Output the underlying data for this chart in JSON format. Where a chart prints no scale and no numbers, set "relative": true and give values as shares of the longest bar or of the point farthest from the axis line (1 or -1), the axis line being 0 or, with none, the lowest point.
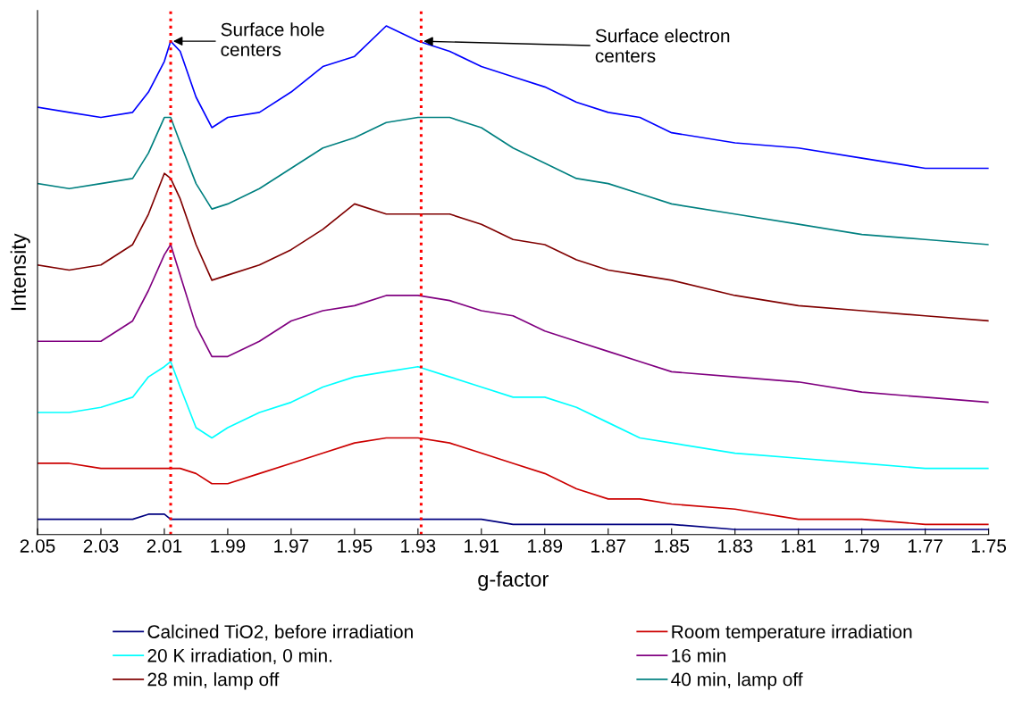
{
  "chart_data": {
    "type": "line",
    "relative": true,
    "xlabel": "g-factor",
    "ylabel": "Intensity",
    "x": [
      2.05,
      2.04,
      2.03,
      2.02,
      2.015,
      2.01,
      2.008,
      2.005,
      2.0,
      1.995,
      1.99,
      1.98,
      1.97,
      1.96,
      1.95,
      1.94,
      1.93,
      1.92,
      1.91,
      1.9,
      1.89,
      1.88,
      1.87,
      1.86,
      1.85,
      1.83,
      1.81,
      1.79,
      1.77,
      1.75
    ],
    "xlim": [
      2.05,
      1.75
    ],
    "xticks": [
      {
        "value": 2.05,
        "label": "2.05"
      },
      {
        "value": 2.03,
        "label": "2.03"
      },
      {
        "value": 2.01,
        "label": "2.01"
      },
      {
        "value": 1.99,
        "label": "1.99"
      },
      {
        "value": 1.97,
        "label": "1.97"
      },
      {
        "value": 1.95,
        "label": "1.95"
      },
      {
        "value": 1.93,
        "label": "1.93"
      },
      {
        "value": 1.91,
        "label": "1.91"
      },
      {
        "value": 1.89,
        "label": "1.89"
      },
      {
        "value": 1.87,
        "label": "1.87"
      },
      {
        "value": 1.85,
        "label": "1.85"
      },
      {
        "value": 1.83,
        "label": "1.83"
      },
      {
        "value": 1.81,
        "label": "1.81"
      },
      {
        "value": 1.79,
        "label": "1.79"
      },
      {
        "value": 1.77,
        "label": "1.77"
      },
      {
        "value": 1.75,
        "label": "1.75"
      }
    ],
    "tick_labels": "x",
    "grid": false,
    "legend": "bottom",
    "series": [
      {
        "name": "Calcined TiO2, before irradiation",
        "color": "#000080",
        "values": [
          0.03,
          0.03,
          0.03,
          0.03,
          0.04,
          0.04,
          0.03,
          0.03,
          0.03,
          0.03,
          0.03,
          0.03,
          0.03,
          0.03,
          0.03,
          0.03,
          0.03,
          0.03,
          0.03,
          0.02,
          0.02,
          0.02,
          0.02,
          0.02,
          0.02,
          0.01,
          0.01,
          0.01,
          0.01,
          0.01
        ]
      },
      {
        "name": "Room temperature irradiation",
        "color": "#cc0000",
        "values": [
          0.14,
          0.14,
          0.13,
          0.13,
          0.13,
          0.13,
          0.13,
          0.13,
          0.12,
          0.1,
          0.1,
          0.12,
          0.14,
          0.16,
          0.18,
          0.19,
          0.19,
          0.18,
          0.16,
          0.14,
          0.12,
          0.09,
          0.07,
          0.07,
          0.06,
          0.05,
          0.03,
          0.03,
          0.02,
          0.02
        ]
      },
      {
        "name": "20 K irradiation, 0 min.",
        "color": "#00ffff",
        "values": [
          0.24,
          0.24,
          0.25,
          0.27,
          0.31,
          0.33,
          0.34,
          0.29,
          0.21,
          0.19,
          0.21,
          0.24,
          0.26,
          0.29,
          0.31,
          0.32,
          0.33,
          0.31,
          0.29,
          0.27,
          0.27,
          0.25,
          0.22,
          0.19,
          0.18,
          0.16,
          0.15,
          0.14,
          0.13,
          0.13
        ]
      },
      {
        "name": "16 min",
        "color": "#800080",
        "values": [
          0.38,
          0.38,
          0.38,
          0.42,
          0.48,
          0.55,
          0.57,
          0.51,
          0.41,
          0.35,
          0.35,
          0.38,
          0.42,
          0.44,
          0.45,
          0.47,
          0.47,
          0.46,
          0.44,
          0.43,
          0.4,
          0.38,
          0.36,
          0.34,
          0.32,
          0.31,
          0.3,
          0.28,
          0.27,
          0.26
        ]
      },
      {
        "name": "28 min, lamp off",
        "color": "#800000",
        "values": [
          0.53,
          0.52,
          0.53,
          0.57,
          0.63,
          0.71,
          0.7,
          0.66,
          0.57,
          0.5,
          0.51,
          0.53,
          0.56,
          0.6,
          0.65,
          0.63,
          0.63,
          0.63,
          0.61,
          0.58,
          0.57,
          0.54,
          0.52,
          0.51,
          0.5,
          0.47,
          0.45,
          0.44,
          0.43,
          0.42
        ]
      },
      {
        "name": "40 min, lamp off",
        "color": "#008080",
        "values": [
          0.69,
          0.68,
          0.69,
          0.7,
          0.75,
          0.82,
          0.82,
          0.77,
          0.69,
          0.64,
          0.65,
          0.68,
          0.72,
          0.76,
          0.78,
          0.81,
          0.82,
          0.82,
          0.8,
          0.76,
          0.73,
          0.7,
          0.69,
          0.67,
          0.65,
          0.63,
          0.61,
          0.59,
          0.58,
          0.57
        ]
      },
      {
        "color": "#0000ff",
        "values": [
          0.84,
          0.83,
          0.82,
          0.83,
          0.87,
          0.93,
          0.97,
          0.95,
          0.86,
          0.8,
          0.82,
          0.83,
          0.87,
          0.92,
          0.94,
          1.0,
          0.97,
          0.95,
          0.92,
          0.9,
          0.88,
          0.85,
          0.83,
          0.82,
          0.79,
          0.77,
          0.76,
          0.74,
          0.72,
          0.72
        ]
      }
    ],
    "ref_lines": [
      {
        "axis": "x",
        "value": 2.008,
        "color": "#ff0000",
        "line_style": "dotted"
      },
      {
        "axis": "x",
        "value": 1.929,
        "color": "#ff0000",
        "line_style": "dotted"
      }
    ],
    "annotations": [
      {
        "text": "Surface hole\ncenters",
        "x": 2.008,
        "y": 0.97
      },
      {
        "text": "Surface electron\ncenters",
        "x": 1.929,
        "y": 0.97
      }
    ]
  }
}
